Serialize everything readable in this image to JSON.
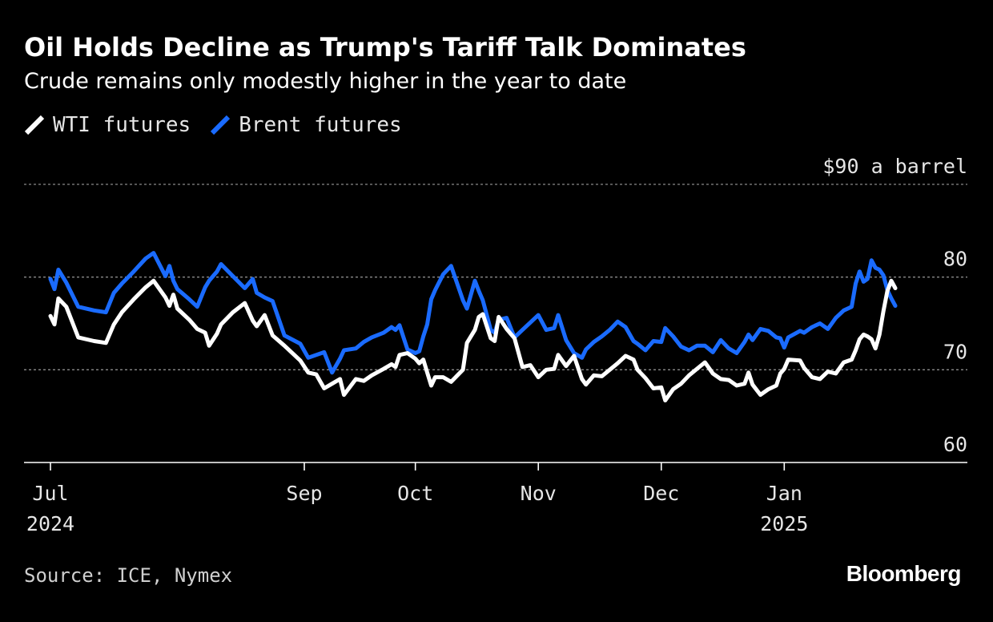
{
  "header": {
    "title": "Oil Holds Decline as Trump's Tariff Talk Dominates",
    "subtitle": "Crude remains only modestly higher in the year to date"
  },
  "legend": {
    "items": [
      {
        "label": "WTI futures",
        "color": "#ffffff"
      },
      {
        "label": "Brent futures",
        "color": "#1a6bff"
      }
    ]
  },
  "footer": {
    "source": "Source: ICE, Nymex",
    "brand": "Bloomberg"
  },
  "chart_data": {
    "type": "line",
    "title": "Oil Holds Decline as Trump's Tariff Talk Dominates",
    "subtitle": "Crude remains only modestly higher in the year to date",
    "xlabel": "",
    "ylabel": "$ a barrel",
    "ylim": [
      60,
      90
    ],
    "y_ticks": [
      60,
      70,
      80,
      90
    ],
    "y_tick_labels": [
      "60",
      "70",
      "80",
      "$90 a barrel"
    ],
    "x_range": [
      "2024-07-01",
      "2025-01-30"
    ],
    "x_ticks": [
      {
        "date": "2024-07-01",
        "label": "Jul",
        "year": "2024"
      },
      {
        "date": "2024-09-03",
        "label": "Sep",
        "year": ""
      },
      {
        "date": "2024-10-01",
        "label": "Oct",
        "year": ""
      },
      {
        "date": "2024-11-01",
        "label": "Nov",
        "year": ""
      },
      {
        "date": "2024-12-02",
        "label": "Dec",
        "year": ""
      },
      {
        "date": "2025-01-02",
        "label": "Jan",
        "year": "2025"
      }
    ],
    "grid": true,
    "legend_position": "top-left",
    "series": [
      {
        "name": "WTI futures",
        "color": "#ffffff",
        "points": [
          [
            "2024-07-01",
            75.8
          ],
          [
            "2024-07-02",
            74.9
          ],
          [
            "2024-07-03",
            77.7
          ],
          [
            "2024-07-05",
            76.8
          ],
          [
            "2024-07-08",
            73.5
          ],
          [
            "2024-07-12",
            73.1
          ],
          [
            "2024-07-15",
            72.9
          ],
          [
            "2024-07-17",
            74.9
          ],
          [
            "2024-07-19",
            76.2
          ],
          [
            "2024-07-22",
            77.6
          ],
          [
            "2024-07-25",
            78.9
          ],
          [
            "2024-07-27",
            79.6
          ],
          [
            "2024-07-30",
            77.8
          ],
          [
            "2024-07-31",
            76.9
          ],
          [
            "2024-08-01",
            78.1
          ],
          [
            "2024-08-02",
            76.6
          ],
          [
            "2024-08-05",
            75.4
          ],
          [
            "2024-08-07",
            74.4
          ],
          [
            "2024-08-09",
            74.0
          ],
          [
            "2024-08-10",
            72.6
          ],
          [
            "2024-08-12",
            73.9
          ],
          [
            "2024-08-13",
            74.9
          ],
          [
            "2024-08-16",
            76.2
          ],
          [
            "2024-08-19",
            77.2
          ],
          [
            "2024-08-21",
            75.3
          ],
          [
            "2024-08-22",
            74.7
          ],
          [
            "2024-08-24",
            75.9
          ],
          [
            "2024-08-26",
            73.7
          ],
          [
            "2024-08-29",
            72.6
          ],
          [
            "2024-09-02",
            71.0
          ],
          [
            "2024-09-04",
            69.7
          ],
          [
            "2024-09-06",
            69.5
          ],
          [
            "2024-09-08",
            68.0
          ],
          [
            "2024-09-10",
            68.5
          ],
          [
            "2024-09-12",
            69.0
          ],
          [
            "2024-09-13",
            67.3
          ],
          [
            "2024-09-16",
            69.0
          ],
          [
            "2024-09-18",
            68.8
          ],
          [
            "2024-09-20",
            69.4
          ],
          [
            "2024-09-23",
            70.1
          ],
          [
            "2024-09-25",
            70.6
          ],
          [
            "2024-09-26",
            70.3
          ],
          [
            "2024-09-27",
            71.6
          ],
          [
            "2024-09-29",
            71.8
          ],
          [
            "2024-10-01",
            71.2
          ],
          [
            "2024-10-02",
            70.7
          ],
          [
            "2024-10-03",
            71.1
          ],
          [
            "2024-10-04",
            69.7
          ],
          [
            "2024-10-05",
            68.3
          ],
          [
            "2024-10-06",
            69.2
          ],
          [
            "2024-10-08",
            69.2
          ],
          [
            "2024-10-10",
            68.7
          ],
          [
            "2024-10-13",
            70.0
          ],
          [
            "2024-10-14",
            72.9
          ],
          [
            "2024-10-16",
            74.3
          ],
          [
            "2024-10-17",
            75.7
          ],
          [
            "2024-10-18",
            76.0
          ],
          [
            "2024-10-20",
            73.4
          ],
          [
            "2024-10-21",
            73.1
          ],
          [
            "2024-10-22",
            75.7
          ],
          [
            "2024-10-24",
            74.4
          ],
          [
            "2024-10-26",
            73.4
          ],
          [
            "2024-10-28",
            70.3
          ],
          [
            "2024-10-30",
            70.5
          ],
          [
            "2024-11-01",
            69.2
          ],
          [
            "2024-11-03",
            70.0
          ],
          [
            "2024-11-05",
            70.1
          ],
          [
            "2024-11-06",
            71.6
          ],
          [
            "2024-11-08",
            70.4
          ],
          [
            "2024-11-10",
            71.5
          ],
          [
            "2024-11-12",
            69.0
          ],
          [
            "2024-11-13",
            68.4
          ],
          [
            "2024-11-15",
            69.4
          ],
          [
            "2024-11-17",
            69.3
          ],
          [
            "2024-11-19",
            70.0
          ],
          [
            "2024-11-21",
            70.7
          ],
          [
            "2024-11-23",
            71.5
          ],
          [
            "2024-11-25",
            71.1
          ],
          [
            "2024-11-26",
            70.0
          ],
          [
            "2024-11-28",
            69.1
          ],
          [
            "2024-11-30",
            68.0
          ],
          [
            "2024-12-02",
            68.1
          ],
          [
            "2024-12-03",
            66.7
          ],
          [
            "2024-12-05",
            67.9
          ],
          [
            "2024-12-07",
            68.5
          ],
          [
            "2024-12-09",
            69.4
          ],
          [
            "2024-12-11",
            70.1
          ],
          [
            "2024-12-13",
            70.8
          ],
          [
            "2024-12-15",
            69.6
          ],
          [
            "2024-12-17",
            69.0
          ],
          [
            "2024-12-19",
            68.9
          ],
          [
            "2024-12-21",
            68.3
          ],
          [
            "2024-12-23",
            68.5
          ],
          [
            "2024-12-24",
            69.7
          ],
          [
            "2024-12-25",
            68.4
          ],
          [
            "2024-12-27",
            67.3
          ],
          [
            "2024-12-29",
            67.9
          ],
          [
            "2024-12-31",
            68.3
          ],
          [
            "2025-01-01",
            69.6
          ],
          [
            "2025-01-02",
            70.1
          ],
          [
            "2025-01-03",
            71.1
          ],
          [
            "2025-01-06",
            71.0
          ],
          [
            "2025-01-07",
            70.2
          ],
          [
            "2025-01-09",
            69.2
          ],
          [
            "2025-01-11",
            69.0
          ],
          [
            "2025-01-13",
            69.8
          ],
          [
            "2025-01-15",
            69.6
          ],
          [
            "2025-01-17",
            70.8
          ],
          [
            "2025-01-19",
            71.1
          ],
          [
            "2025-01-20",
            72.1
          ],
          [
            "2025-01-21",
            73.3
          ],
          [
            "2025-01-22",
            73.8
          ],
          [
            "2025-01-23",
            73.6
          ],
          [
            "2025-01-24",
            73.3
          ],
          [
            "2025-01-25",
            72.3
          ],
          [
            "2025-01-26",
            73.8
          ],
          [
            "2025-01-27",
            76.3
          ],
          [
            "2025-01-28",
            78.5
          ],
          [
            "2025-01-29",
            79.6
          ],
          [
            "2025-01-30",
            78.8
          ]
        ]
      },
      {
        "name": "Brent futures",
        "color": "#1a6bff",
        "points": [
          [
            "2024-07-01",
            79.8
          ],
          [
            "2024-07-02",
            78.7
          ],
          [
            "2024-07-03",
            80.8
          ],
          [
            "2024-07-05",
            79.4
          ],
          [
            "2024-07-08",
            76.8
          ],
          [
            "2024-07-12",
            76.4
          ],
          [
            "2024-07-15",
            76.2
          ],
          [
            "2024-07-17",
            78.3
          ],
          [
            "2024-07-19",
            79.3
          ],
          [
            "2024-07-22",
            80.6
          ],
          [
            "2024-07-25",
            82.0
          ],
          [
            "2024-07-27",
            82.6
          ],
          [
            "2024-07-30",
            80.1
          ],
          [
            "2024-07-31",
            81.2
          ],
          [
            "2024-08-01",
            79.6
          ],
          [
            "2024-08-02",
            78.7
          ],
          [
            "2024-08-05",
            77.6
          ],
          [
            "2024-08-07",
            76.8
          ],
          [
            "2024-08-09",
            78.9
          ],
          [
            "2024-08-10",
            79.6
          ],
          [
            "2024-08-12",
            80.6
          ],
          [
            "2024-08-13",
            81.4
          ],
          [
            "2024-08-16",
            80.1
          ],
          [
            "2024-08-19",
            78.8
          ],
          [
            "2024-08-21",
            79.8
          ],
          [
            "2024-08-22",
            78.3
          ],
          [
            "2024-08-24",
            77.8
          ],
          [
            "2024-08-26",
            77.4
          ],
          [
            "2024-08-29",
            73.7
          ],
          [
            "2024-09-02",
            72.8
          ],
          [
            "2024-09-04",
            71.3
          ],
          [
            "2024-09-06",
            71.6
          ],
          [
            "2024-09-08",
            71.9
          ],
          [
            "2024-09-10",
            69.7
          ],
          [
            "2024-09-12",
            71.2
          ],
          [
            "2024-09-13",
            72.1
          ],
          [
            "2024-09-16",
            72.3
          ],
          [
            "2024-09-18",
            73.0
          ],
          [
            "2024-09-20",
            73.5
          ],
          [
            "2024-09-23",
            74.0
          ],
          [
            "2024-09-25",
            74.6
          ],
          [
            "2024-09-26",
            74.3
          ],
          [
            "2024-09-27",
            74.8
          ],
          [
            "2024-09-29",
            72.2
          ],
          [
            "2024-10-01",
            71.8
          ],
          [
            "2024-10-02",
            72.0
          ],
          [
            "2024-10-03",
            73.6
          ],
          [
            "2024-10-04",
            74.9
          ],
          [
            "2024-10-05",
            77.6
          ],
          [
            "2024-10-06",
            78.6
          ],
          [
            "2024-10-08",
            80.3
          ],
          [
            "2024-10-10",
            81.2
          ],
          [
            "2024-10-13",
            77.5
          ],
          [
            "2024-10-14",
            76.6
          ],
          [
            "2024-10-16",
            79.6
          ],
          [
            "2024-10-17",
            78.5
          ],
          [
            "2024-10-18",
            77.5
          ],
          [
            "2024-10-20",
            74.3
          ],
          [
            "2024-10-21",
            74.0
          ],
          [
            "2024-10-22",
            75.4
          ],
          [
            "2024-10-24",
            75.6
          ],
          [
            "2024-10-26",
            73.5
          ],
          [
            "2024-10-28",
            74.3
          ],
          [
            "2024-10-30",
            75.1
          ],
          [
            "2024-11-01",
            75.9
          ],
          [
            "2024-11-03",
            74.3
          ],
          [
            "2024-11-05",
            74.5
          ],
          [
            "2024-11-06",
            75.9
          ],
          [
            "2024-11-08",
            73.2
          ],
          [
            "2024-11-10",
            71.8
          ],
          [
            "2024-11-12",
            71.3
          ],
          [
            "2024-11-13",
            72.2
          ],
          [
            "2024-11-15",
            73.0
          ],
          [
            "2024-11-17",
            73.6
          ],
          [
            "2024-11-19",
            74.3
          ],
          [
            "2024-11-21",
            75.2
          ],
          [
            "2024-11-23",
            74.6
          ],
          [
            "2024-11-25",
            73.1
          ],
          [
            "2024-11-26",
            72.8
          ],
          [
            "2024-11-28",
            72.1
          ],
          [
            "2024-11-30",
            73.1
          ],
          [
            "2024-12-02",
            73.0
          ],
          [
            "2024-12-03",
            74.5
          ],
          [
            "2024-12-05",
            73.6
          ],
          [
            "2024-12-07",
            72.5
          ],
          [
            "2024-12-09",
            72.1
          ],
          [
            "2024-12-11",
            72.6
          ],
          [
            "2024-12-13",
            72.6
          ],
          [
            "2024-12-15",
            71.9
          ],
          [
            "2024-12-17",
            73.2
          ],
          [
            "2024-12-19",
            72.3
          ],
          [
            "2024-12-21",
            71.8
          ],
          [
            "2024-12-23",
            73.0
          ],
          [
            "2024-12-24",
            73.8
          ],
          [
            "2024-12-25",
            73.2
          ],
          [
            "2024-12-27",
            74.4
          ],
          [
            "2024-12-29",
            74.2
          ],
          [
            "2024-12-31",
            73.5
          ],
          [
            "2025-01-01",
            73.4
          ],
          [
            "2025-01-02",
            72.4
          ],
          [
            "2025-01-03",
            73.5
          ],
          [
            "2025-01-06",
            74.2
          ],
          [
            "2025-01-07",
            74.0
          ],
          [
            "2025-01-09",
            74.6
          ],
          [
            "2025-01-11",
            75.0
          ],
          [
            "2025-01-13",
            74.4
          ],
          [
            "2025-01-15",
            75.6
          ],
          [
            "2025-01-17",
            76.4
          ],
          [
            "2025-01-19",
            76.8
          ],
          [
            "2025-01-20",
            79.3
          ],
          [
            "2025-01-21",
            80.6
          ],
          [
            "2025-01-22",
            79.5
          ],
          [
            "2025-01-23",
            79.8
          ],
          [
            "2025-01-24",
            81.8
          ],
          [
            "2025-01-25",
            81.0
          ],
          [
            "2025-01-26",
            80.8
          ],
          [
            "2025-01-27",
            80.2
          ],
          [
            "2025-01-28",
            78.6
          ],
          [
            "2025-01-29",
            77.7
          ],
          [
            "2025-01-30",
            76.9
          ]
        ]
      }
    ]
  }
}
